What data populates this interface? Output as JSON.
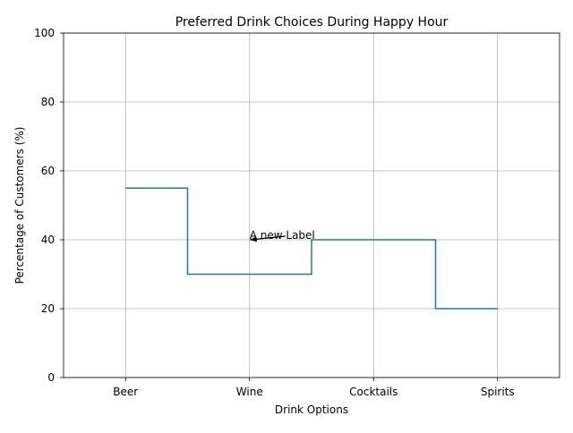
{
  "chart_data": {
    "type": "line",
    "title": "Preferred Drink Choices During Happy Hour",
    "xlabel": "Drink Options",
    "ylabel": "Percentage of Customers (%)",
    "categories": [
      "Beer",
      "Wine",
      "Cocktails",
      "Spirits"
    ],
    "values": [
      55,
      30,
      40,
      20
    ],
    "line_style": "step-mid",
    "ylim": [
      0,
      100
    ],
    "yticks": [
      0,
      20,
      40,
      60,
      80,
      100
    ],
    "xlim": [
      -0.5,
      3.5
    ],
    "grid": true,
    "line_color": "#1f77b4",
    "annotation": {
      "text": "A new Label",
      "x": 1,
      "y": 40
    }
  }
}
